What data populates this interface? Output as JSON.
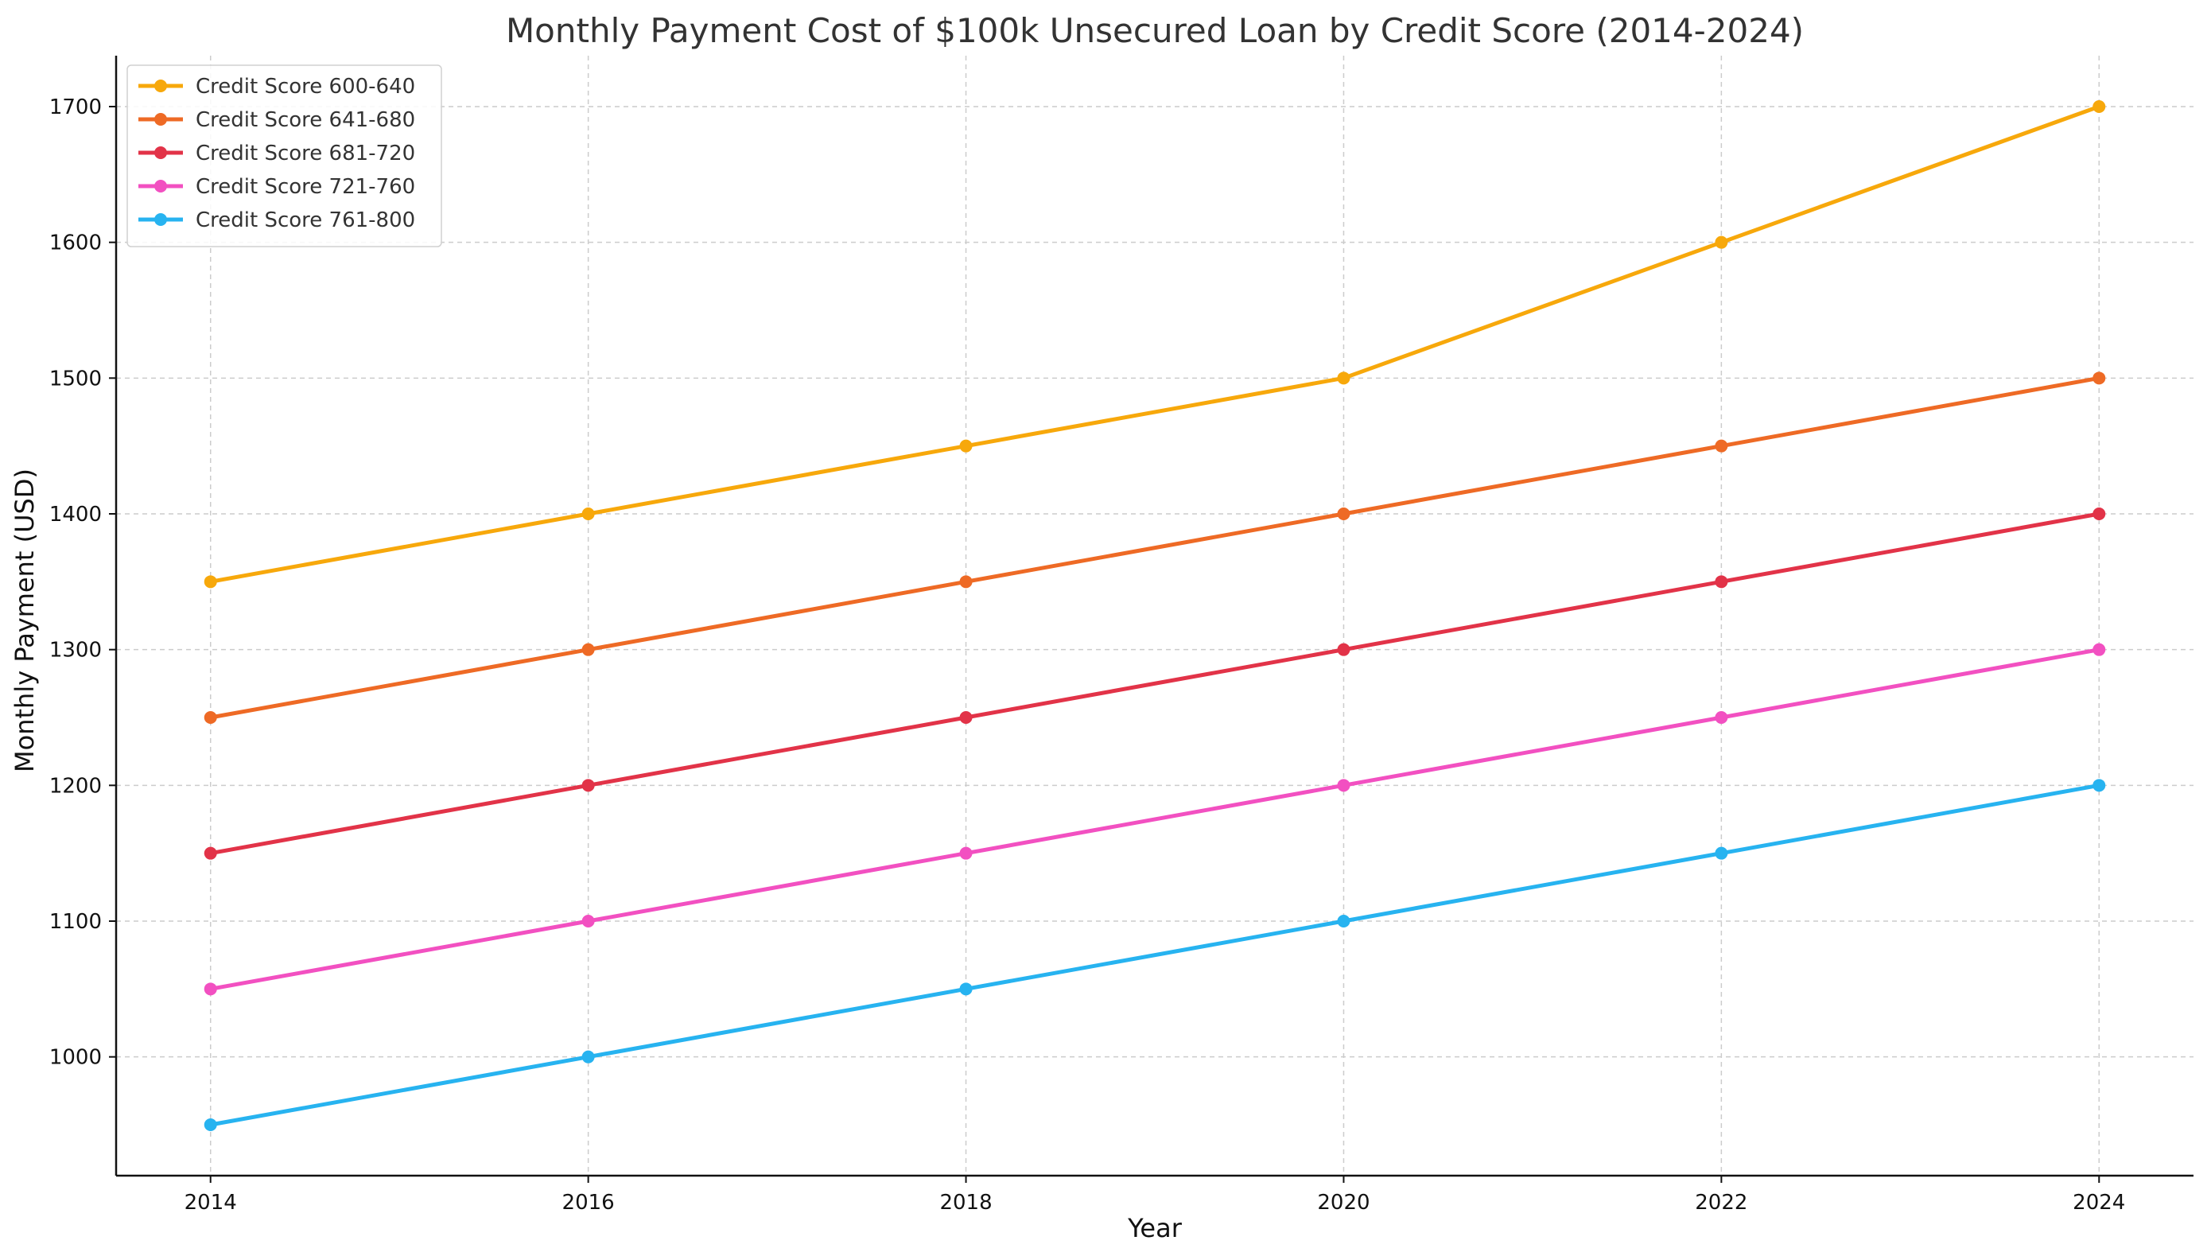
{
  "chart_data": {
    "type": "line",
    "title": "Monthly Payment Cost of $100k Unsecured Loan by Credit Score (2014-2024)",
    "xlabel": "Year",
    "ylabel": "Monthly Payment (USD)",
    "x": [
      2014,
      2016,
      2018,
      2020,
      2022,
      2024
    ],
    "x_tick_labels": [
      "2014",
      "2016",
      "2018",
      "2020",
      "2022",
      "2024"
    ],
    "y_ticks": [
      1000,
      1100,
      1200,
      1300,
      1400,
      1500,
      1600,
      1700
    ],
    "y_tick_labels": [
      "1000",
      "1100",
      "1200",
      "1300",
      "1400",
      "1500",
      "1600",
      "1700"
    ],
    "xlim": [
      2013.5,
      2024.5
    ],
    "ylim": [
      912.5,
      1737.5
    ],
    "grid": true,
    "legend_position": "top-left",
    "series": [
      {
        "name": "Credit Score 600-640",
        "color": "#F7A80B",
        "values": [
          1350,
          1400,
          1450,
          1500,
          1600,
          1700
        ]
      },
      {
        "name": "Credit Score 641-680",
        "color": "#EE6A25",
        "values": [
          1250,
          1300,
          1350,
          1400,
          1450,
          1500
        ]
      },
      {
        "name": "Credit Score 681-720",
        "color": "#E23348",
        "values": [
          1150,
          1200,
          1250,
          1300,
          1350,
          1400
        ]
      },
      {
        "name": "Credit Score 721-760",
        "color": "#F250C1",
        "values": [
          1050,
          1100,
          1150,
          1200,
          1250,
          1300
        ]
      },
      {
        "name": "Credit Score 761-800",
        "color": "#27B3F0",
        "values": [
          950,
          1000,
          1050,
          1100,
          1150,
          1200
        ]
      }
    ]
  }
}
